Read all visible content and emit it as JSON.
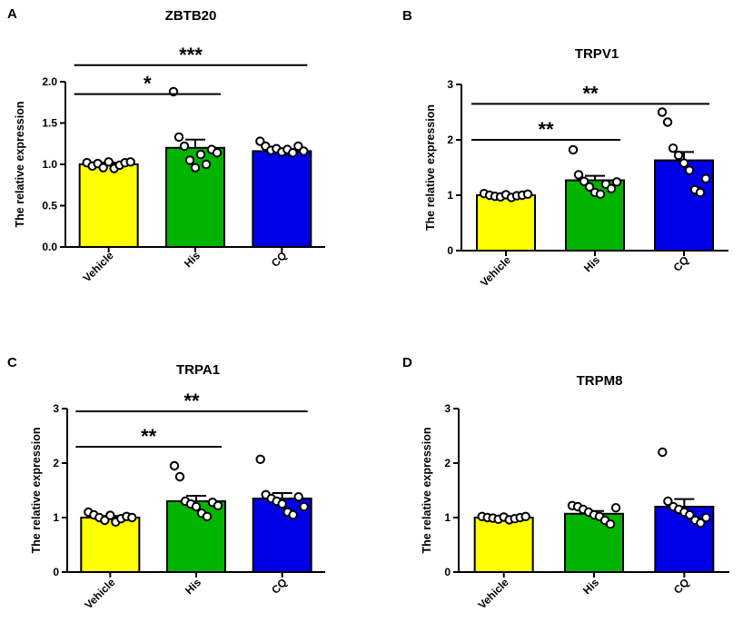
{
  "chart_data": [
    {
      "type": "bar",
      "panel": "A",
      "title": "ZBTB20",
      "xlabel": "",
      "ylabel": "The relative expression",
      "ylim": [
        0,
        2.0
      ],
      "yticks": [
        0.0,
        0.5,
        1.0,
        1.5,
        2.0
      ],
      "ytick_labels": [
        "0.0",
        "0.5",
        "1.0",
        "1.5",
        "2.0"
      ],
      "categories": [
        "Vehicle",
        "His",
        "CQ"
      ],
      "values": [
        1.0,
        1.2,
        1.16
      ],
      "sem": [
        0.02,
        0.1,
        0.03
      ],
      "colors": [
        "#ffff00",
        "#00b400",
        "#0000e6"
      ],
      "points": [
        [
          1.02,
          0.98,
          1.01,
          0.96,
          1.03,
          0.95,
          0.99,
          1.02,
          1.03
        ],
        [
          1.88,
          1.33,
          1.22,
          1.05,
          0.96,
          1.12,
          1.0,
          1.18,
          1.14
        ],
        [
          1.28,
          1.22,
          1.17,
          1.19,
          1.15,
          1.18,
          1.14,
          1.22,
          1.16
        ]
      ],
      "significance": [
        {
          "from": 0,
          "to": 1,
          "label": "*",
          "y": 1.85
        },
        {
          "from": 0,
          "to": 2,
          "label": "***",
          "y": 2.2
        }
      ]
    },
    {
      "type": "bar",
      "panel": "B",
      "title": "TRPV1",
      "xlabel": "",
      "ylabel": "The relative expression",
      "ylim": [
        0,
        3
      ],
      "yticks": [
        0,
        1,
        2,
        3
      ],
      "ytick_labels": [
        "0",
        "1",
        "2",
        "3"
      ],
      "categories": [
        "Vehicle",
        "His",
        "CQ"
      ],
      "values": [
        1.0,
        1.27,
        1.63
      ],
      "sem": [
        0.02,
        0.08,
        0.15
      ],
      "colors": [
        "#ffff00",
        "#00b400",
        "#0000e6"
      ],
      "points": [
        [
          1.03,
          1.0,
          0.98,
          0.97,
          1.01,
          0.96,
          0.99,
          1.0,
          1.02
        ],
        [
          1.82,
          1.37,
          1.25,
          1.15,
          1.05,
          1.02,
          1.2,
          1.12,
          1.24
        ],
        [
          2.5,
          2.32,
          1.85,
          1.72,
          1.58,
          1.45,
          1.1,
          1.05,
          1.3
        ]
      ],
      "significance": [
        {
          "from": 0,
          "to": 1,
          "label": "**",
          "y": 2.0
        },
        {
          "from": 0,
          "to": 2,
          "label": "**",
          "y": 2.65
        }
      ]
    },
    {
      "type": "bar",
      "panel": "C",
      "title": "TRPA1",
      "xlabel": "",
      "ylabel": "The relative expression",
      "ylim": [
        0,
        3
      ],
      "yticks": [
        0,
        1,
        2,
        3
      ],
      "ytick_labels": [
        "0",
        "1",
        "2",
        "3"
      ],
      "categories": [
        "Vehicle",
        "His",
        "CQ"
      ],
      "values": [
        1.0,
        1.3,
        1.35
      ],
      "sem": [
        0.03,
        0.1,
        0.1
      ],
      "colors": [
        "#ffff00",
        "#00b400",
        "#0000e6"
      ],
      "points": [
        [
          1.1,
          1.05,
          1.0,
          0.95,
          1.04,
          0.92,
          0.98,
          1.02,
          1.0
        ],
        [
          1.95,
          1.75,
          1.3,
          1.25,
          1.2,
          1.08,
          1.02,
          1.28,
          1.22
        ],
        [
          2.07,
          1.42,
          1.35,
          1.3,
          1.25,
          1.1,
          1.05,
          1.38,
          1.2
        ]
      ],
      "significance": [
        {
          "from": 0,
          "to": 1,
          "label": "**",
          "y": 2.3
        },
        {
          "from": 0,
          "to": 2,
          "label": "**",
          "y": 2.95
        }
      ]
    },
    {
      "type": "bar",
      "panel": "D",
      "title": "TRPM8",
      "xlabel": "",
      "ylabel": "The relative expression",
      "ylim": [
        0,
        3
      ],
      "yticks": [
        0,
        1,
        2,
        3
      ],
      "ytick_labels": [
        "0",
        "1",
        "2",
        "3"
      ],
      "categories": [
        "Vehicle",
        "His",
        "CQ"
      ],
      "values": [
        1.0,
        1.07,
        1.2
      ],
      "sem": [
        0.02,
        0.05,
        0.14
      ],
      "colors": [
        "#ffff00",
        "#00b400",
        "#0000e6"
      ],
      "points": [
        [
          1.02,
          1.0,
          0.99,
          0.97,
          1.01,
          0.96,
          0.98,
          1.0,
          1.02
        ],
        [
          1.22,
          1.2,
          1.15,
          1.1,
          1.05,
          1.02,
          0.95,
          0.88,
          1.18
        ],
        [
          2.2,
          1.3,
          1.2,
          1.15,
          1.1,
          1.05,
          0.95,
          0.9,
          1.0
        ]
      ],
      "significance": []
    }
  ]
}
